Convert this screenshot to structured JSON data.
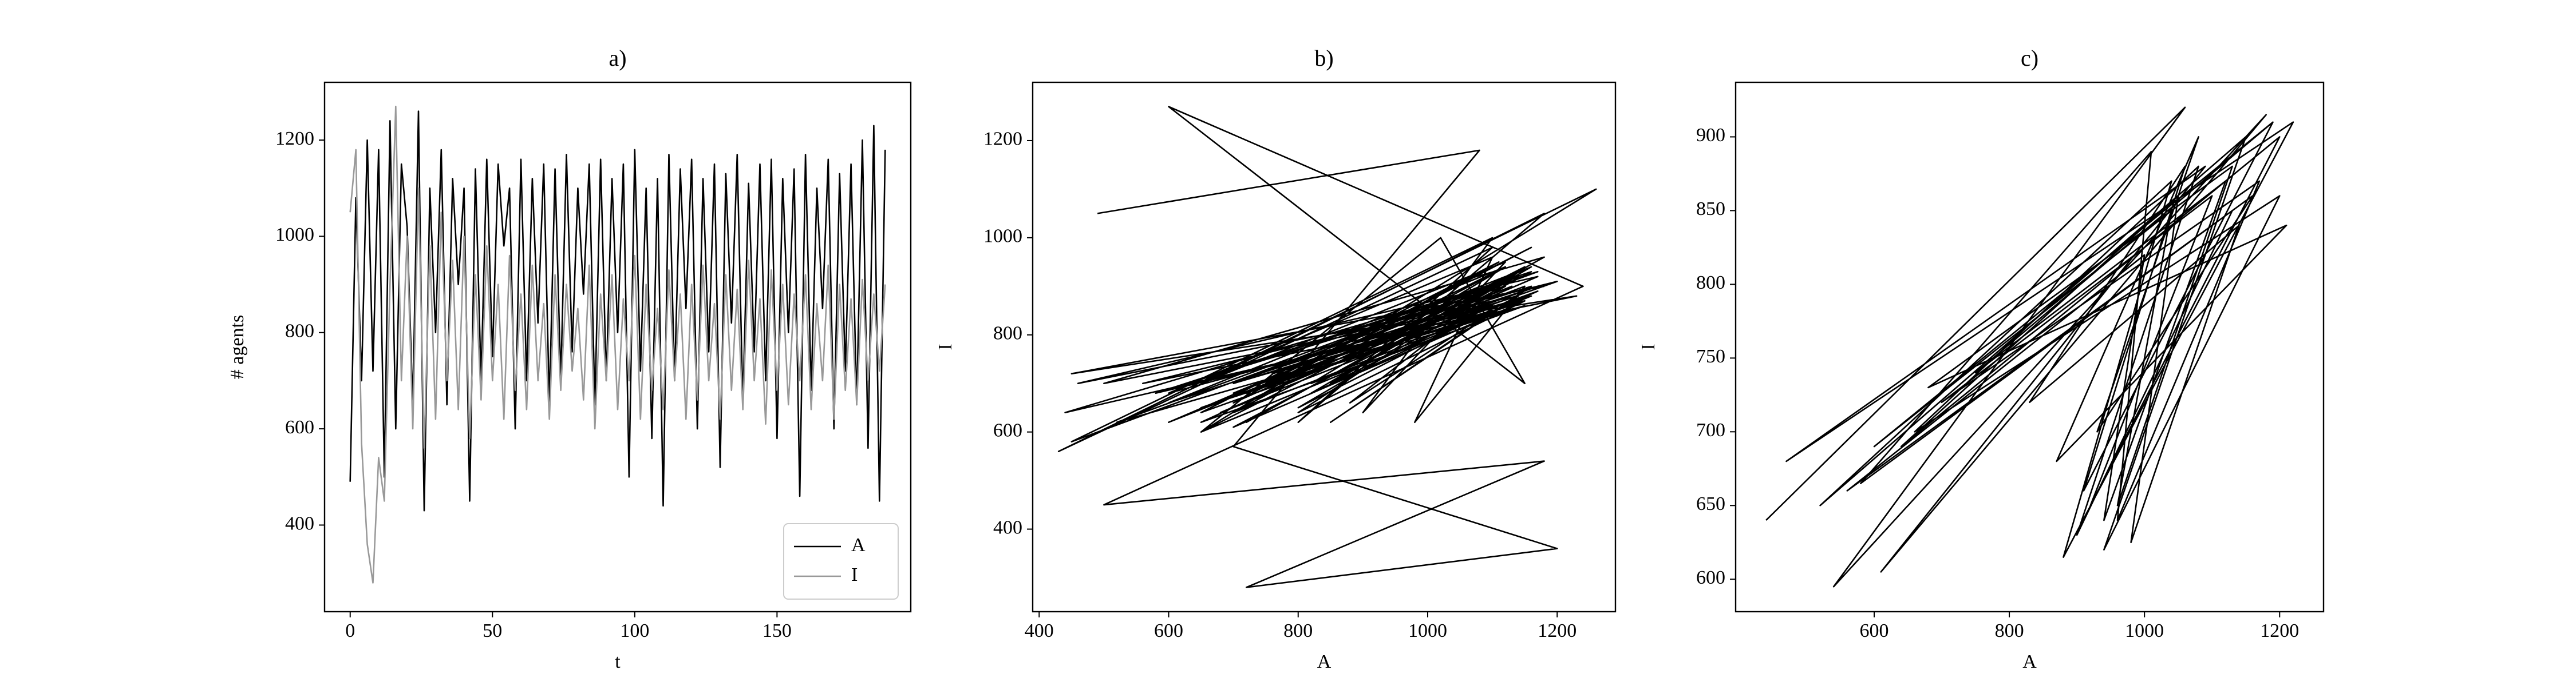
{
  "chart_data": [
    {
      "type": "line",
      "title": "a)",
      "xlabel": "t",
      "ylabel": "# agents",
      "x": [
        0,
        2,
        4,
        6,
        8,
        10,
        12,
        14,
        16,
        18,
        20,
        22,
        24,
        26,
        28,
        30,
        32,
        34,
        36,
        38,
        40,
        42,
        44,
        46,
        48,
        50,
        52,
        54,
        56,
        58,
        60,
        62,
        64,
        66,
        68,
        70,
        72,
        74,
        76,
        78,
        80,
        82,
        84,
        86,
        88,
        90,
        92,
        94,
        96,
        98,
        100,
        102,
        104,
        106,
        108,
        110,
        112,
        114,
        116,
        118,
        120,
        122,
        124,
        126,
        128,
        130,
        132,
        134,
        136,
        138,
        140,
        142,
        144,
        146,
        148,
        150,
        152,
        154,
        156,
        158,
        160,
        162,
        164,
        166,
        168,
        170,
        172,
        174,
        176,
        178,
        180,
        182,
        184,
        186,
        188
      ],
      "series": [
        {
          "name": "A",
          "color": "#000000",
          "values": [
            490,
            1080,
            700,
            1200,
            720,
            1180,
            500,
            1240,
            600,
            1150,
            1020,
            650,
            1260,
            430,
            1100,
            800,
            1180,
            650,
            1120,
            900,
            1100,
            450,
            1140,
            700,
            1160,
            750,
            1150,
            980,
            1100,
            600,
            1160,
            700,
            1120,
            820,
            1150,
            650,
            1140,
            700,
            1170,
            760,
            1100,
            880,
            1150,
            650,
            1160,
            700,
            1120,
            800,
            1150,
            500,
            1180,
            720,
            1100,
            580,
            1120,
            440,
            1170,
            700,
            1140,
            850,
            1160,
            600,
            1120,
            760,
            1150,
            520,
            1130,
            820,
            1170,
            650,
            1110,
            760,
            1150,
            700,
            1160,
            580,
            1120,
            800,
            1140,
            460,
            1170,
            680,
            1100,
            850,
            1160,
            600,
            1130,
            720,
            1150,
            650,
            1200,
            560,
            1230,
            450,
            1180
          ]
        },
        {
          "name": "I",
          "color": "#999999",
          "values": [
            1050,
            1180,
            570,
            360,
            280,
            540,
            450,
            900,
            1270,
            700,
            1000,
            600,
            1100,
            560,
            980,
            620,
            1050,
            700,
            950,
            640,
            1000,
            580,
            920,
            660,
            980,
            700,
            900,
            620,
            960,
            680,
            880,
            640,
            940,
            700,
            860,
            620,
            920,
            680,
            900,
            720,
            850,
            660,
            940,
            600,
            880,
            700,
            920,
            640,
            870,
            700,
            960,
            620,
            900,
            680,
            850,
            640,
            930,
            700,
            880,
            620,
            900,
            660,
            940,
            700,
            860,
            620,
            920,
            680,
            890,
            640,
            950,
            700,
            870,
            610,
            930,
            680,
            900,
            650,
            880,
            700,
            920,
            640,
            860,
            700,
            940,
            620,
            900,
            680,
            870,
            650,
            910,
            700,
            880,
            720,
            900
          ]
        }
      ],
      "xlim": [
        -9,
        197
      ],
      "xticks": [
        0,
        50,
        100,
        150
      ],
      "ylim": [
        220,
        1320
      ],
      "yticks": [
        400,
        600,
        800,
        1000,
        1200
      ],
      "legend": "lower right"
    },
    {
      "type": "line",
      "title": "b)",
      "xlabel": "A",
      "ylabel": "I",
      "color": "#000000",
      "x": [
        490,
        1080,
        700,
        1200,
        720,
        1180,
        500,
        1240,
        600,
        1150,
        1020,
        650,
        1260,
        430,
        1100,
        800,
        1180,
        650,
        1120,
        900,
        1100,
        450,
        1140,
        700,
        1160,
        750,
        1150,
        980,
        1100,
        600,
        1160,
        700,
        1120,
        820,
        1150,
        650,
        1140,
        700,
        1170,
        760,
        1100,
        880,
        1150,
        650,
        1160,
        700,
        1120,
        800,
        1150,
        500,
        1180,
        720,
        1100,
        580,
        1120,
        440,
        1170,
        700,
        1140,
        850,
        1160,
        600,
        1120,
        760,
        1150,
        520,
        1130,
        820,
        1170,
        650,
        1110,
        760,
        1150,
        700,
        1160,
        580,
        1120,
        800,
        1140,
        460,
        1170,
        680,
        1100,
        850,
        1160,
        600,
        1130,
        720,
        1150,
        650,
        1200,
        560,
        1230,
        450,
        1180
      ],
      "values": [
        1050,
        1180,
        570,
        360,
        280,
        540,
        450,
        900,
        1270,
        700,
        1000,
        600,
        1100,
        560,
        980,
        620,
        1050,
        700,
        950,
        640,
        1000,
        580,
        920,
        660,
        980,
        700,
        900,
        620,
        960,
        680,
        880,
        640,
        940,
        700,
        860,
        620,
        920,
        680,
        900,
        720,
        850,
        660,
        940,
        600,
        880,
        700,
        920,
        640,
        870,
        700,
        960,
        620,
        900,
        680,
        850,
        640,
        930,
        700,
        880,
        620,
        900,
        660,
        940,
        700,
        860,
        620,
        920,
        680,
        890,
        640,
        950,
        700,
        870,
        610,
        930,
        680,
        900,
        650,
        880,
        700,
        920,
        640,
        860,
        700,
        940,
        620,
        900,
        680,
        870,
        650,
        910,
        700,
        880,
        720,
        900
      ],
      "xlim": [
        390,
        1290
      ],
      "xticks": [
        400,
        600,
        800,
        1000,
        1200
      ],
      "ylim": [
        230,
        1320
      ],
      "yticks": [
        400,
        600,
        800,
        1000,
        1200
      ]
    },
    {
      "type": "line",
      "title": "c)",
      "xlabel": "A",
      "ylabel": "I",
      "color": "#000000",
      "x": [
        440,
        1060,
        540,
        1180,
        610,
        1090,
        470,
        1220,
        880,
        1040,
        520,
        1150,
        940,
        1200,
        660,
        1080,
        900,
        1130,
        580,
        1010,
        960,
        1170,
        700,
        1100,
        920,
        1200,
        640,
        1050,
        980,
        1140,
        830,
        1060,
        910,
        1190,
        750,
        1120,
        940,
        1000,
        560,
        1160,
        930,
        1080,
        870,
        1210,
        680,
        1130,
        960,
        1040,
        600,
        1190
      ],
      "values": [
        640,
        920,
        595,
        915,
        605,
        880,
        680,
        910,
        615,
        870,
        650,
        900,
        620,
        860,
        700,
        880,
        630,
        850,
        665,
        890,
        640,
        870,
        720,
        860,
        650,
        900,
        690,
        860,
        625,
        840,
        720,
        880,
        660,
        910,
        740,
        870,
        640,
        820,
        660,
        860,
        700,
        900,
        680,
        840,
        730,
        880,
        650,
        850,
        690,
        910
      ],
      "xlim": [
        395,
        1265
      ],
      "xticks": [
        600,
        800,
        1000,
        1200
      ],
      "ylim": [
        578,
        937
      ],
      "yticks": [
        600,
        650,
        700,
        750,
        800,
        850,
        900
      ]
    }
  ]
}
